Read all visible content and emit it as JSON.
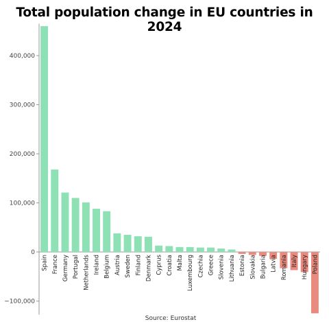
{
  "chart_data": {
    "type": "bar",
    "title": "Total population change in EU countries in 2024",
    "source": "Source: Eurostat",
    "ylim": [
      -125000,
      465000
    ],
    "yticks": [
      -100000,
      0,
      100000,
      200000,
      300000,
      400000
    ],
    "ytick_labels": [
      "−100,000",
      "0",
      "100,000",
      "200,000",
      "300,000",
      "400,000"
    ],
    "grid": false,
    "categories": [
      "Spain",
      "France",
      "Germany",
      "Portugal",
      "Netherlands",
      "Ireland",
      "Belgium",
      "Austria",
      "Sweden",
      "Finland",
      "Denmark",
      "Cyprus",
      "Croatia",
      "Malta",
      "Luxembourg",
      "Czechia",
      "Greece",
      "Slovenia",
      "Lithuania",
      "Estonia",
      "Slovakia",
      "Bulgaria",
      "Latvia",
      "Romania",
      "Italy",
      "Hungary",
      "Poland"
    ],
    "values": [
      460000,
      168000,
      121000,
      110000,
      101000,
      88000,
      83000,
      38000,
      35000,
      32000,
      31000,
      13000,
      12000,
      10000,
      10000,
      9000,
      9000,
      7000,
      5000,
      -4000,
      -6000,
      -8000,
      -14000,
      -33000,
      -37000,
      -41000,
      -125000
    ],
    "colors": {
      "positive": "#8ee0b5",
      "negative": "#ea8a7e",
      "axis": "#999999"
    }
  }
}
